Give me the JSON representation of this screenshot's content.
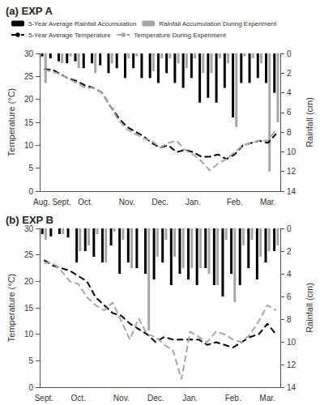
{
  "chart_data": [
    {
      "type": "line",
      "title": "(a) EXP A",
      "y_label": "Temperature (°C)",
      "y2_label": "Rainfall (cm)",
      "categories": [
        null,
        "Aug. Sept.",
        null,
        null,
        null,
        "Oct.",
        null,
        null,
        null,
        null,
        "Nov.",
        null,
        null,
        null,
        "Dec.",
        null,
        null,
        null,
        "Jan.",
        null,
        null,
        null,
        null,
        "Feb.",
        null,
        null,
        null,
        "Mar.",
        null
      ],
      "ylim": [
        0,
        30
      ],
      "yticks": [
        0,
        5,
        10,
        15,
        20,
        25,
        30
      ],
      "y2lim": [
        14,
        0
      ],
      "y2ticks": [
        0,
        2,
        4,
        6,
        8,
        10,
        12,
        14
      ],
      "grid": false,
      "legend": "top",
      "series": [
        {
          "name": "5-Year Average Rainfall Accumulation",
          "type": "bar",
          "axis": "y2",
          "color": "#000000",
          "values": [
            0.3,
            0.5,
            0.8,
            1,
            0.8,
            1.5,
            1,
            1.2,
            2,
            1.5,
            2.5,
            1.5,
            2.5,
            2.5,
            3,
            2,
            3,
            3.5,
            2.5,
            5,
            4.5,
            5,
            3.5,
            6.5,
            3,
            3,
            2.5,
            3,
            4
          ]
        },
        {
          "name": "Rainfall Accumulation During Experiment",
          "type": "bar",
          "axis": "y2",
          "color": "#a6a6a6",
          "values": [
            3,
            0,
            1,
            0.3,
            1.5,
            0,
            2,
            0,
            1,
            0,
            0.5,
            0.3,
            0,
            1.8,
            0.5,
            0.5,
            1,
            1.5,
            0.5,
            2,
            2,
            0.5,
            1,
            7.5,
            0.3,
            0.5,
            1,
            12,
            7
          ]
        },
        {
          "name": "5-Year Average Temperature",
          "type": "line",
          "line_style": "dashed",
          "color": "#000000",
          "values": [
            26.5,
            26.5,
            25.5,
            24.5,
            24,
            23,
            22.5,
            21.5,
            18.5,
            16,
            14,
            13,
            12,
            10.5,
            9.5,
            10,
            8.5,
            9,
            8.5,
            7.5,
            7.5,
            8,
            7,
            8,
            10,
            10.5,
            11,
            10.5,
            12.5
          ]
        },
        {
          "name": "Temperature During Experiment",
          "type": "line",
          "line_style": "dashed",
          "color": "#a6a6a6",
          "values": [
            26.5,
            26,
            25.5,
            24.5,
            23.5,
            22.5,
            22.5,
            21.5,
            18.5,
            15.5,
            13.5,
            12.5,
            11.5,
            11,
            9.5,
            10.5,
            11,
            9,
            8,
            6.5,
            4.5,
            6,
            7,
            8.5,
            10,
            10.5,
            11,
            11,
            13.5
          ]
        }
      ]
    },
    {
      "type": "line",
      "title": "(b) EXP B",
      "y_label": "Temperature (°C)",
      "y2_label": "Rainfall (cm)",
      "categories": [
        "Sept.",
        null,
        null,
        null,
        "Oct.",
        null,
        null,
        null,
        null,
        "Nov.",
        null,
        null,
        null,
        "Dec.",
        null,
        null,
        null,
        "Jan.",
        null,
        null,
        null,
        null,
        "Feb.",
        null,
        null,
        null,
        "Mar.",
        null
      ],
      "ylim": [
        0,
        30
      ],
      "yticks": [
        0,
        5,
        10,
        15,
        20,
        25,
        30
      ],
      "y2lim": [
        14,
        0
      ],
      "y2ticks": [
        0,
        2,
        4,
        6,
        8,
        10,
        12,
        14
      ],
      "grid": false,
      "series": [
        {
          "name": "5-Year Average Rainfall Accumulation",
          "type": "bar",
          "axis": "y2",
          "color": "#000000",
          "values": [
            0.5,
            0.7,
            0.5,
            0.8,
            3,
            2,
            2.5,
            3,
            1.5,
            4,
            3,
            3.5,
            4,
            4.5,
            3,
            5,
            4,
            4.5,
            5,
            3.5,
            5,
            6,
            4,
            5,
            3.5,
            4.5,
            3,
            2
          ]
        },
        {
          "name": "Rainfall Accumulation During Experiment",
          "type": "bar",
          "axis": "y2",
          "color": "#a6a6a6",
          "values": [
            1,
            0,
            0.5,
            0,
            2,
            1.5,
            0.5,
            3,
            0.3,
            1,
            3.5,
            0,
            9,
            2.5,
            1,
            2.5,
            3.5,
            3.5,
            3.5,
            4,
            5,
            1,
            6.5,
            1.5,
            1,
            2.5,
            2,
            1.5
          ]
        },
        {
          "name": "5-Year Average Temperature",
          "type": "line",
          "line_style": "dashed",
          "color": "#000000",
          "values": [
            24,
            23,
            22.5,
            22,
            21,
            20,
            17,
            15.5,
            14,
            13.5,
            12,
            11,
            10,
            8.5,
            9.5,
            9,
            9,
            9,
            9,
            8,
            8.5,
            8,
            7.5,
            8.5,
            9.5,
            10,
            12,
            10
          ]
        },
        {
          "name": "Temperature During Experiment",
          "type": "line",
          "line_style": "dashed",
          "color": "#a6a6a6",
          "values": [
            23.5,
            23.5,
            22,
            20,
            19.5,
            17,
            15.5,
            14.5,
            16,
            12.5,
            9,
            13,
            10,
            9.5,
            8,
            7,
            1.5,
            10.5,
            9.5,
            8.5,
            10.5,
            10,
            9,
            8.5,
            10,
            12.5,
            15.5,
            14.5
          ]
        }
      ]
    }
  ]
}
